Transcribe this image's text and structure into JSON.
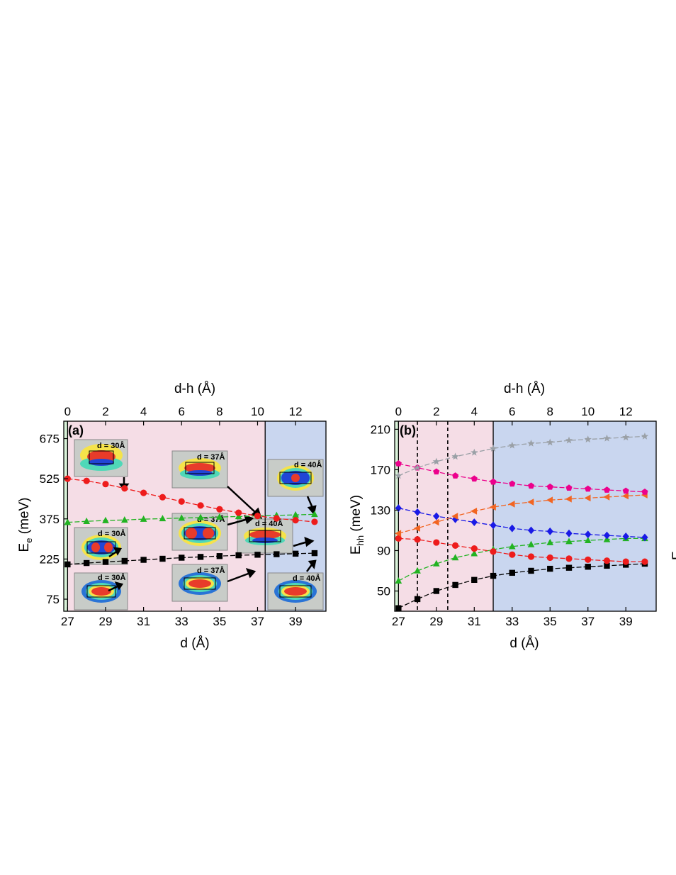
{
  "chart_data": [
    {
      "type": "line",
      "panel_label": "(a)",
      "xlabel": "d (Å)",
      "ylabel_main": "E",
      "ylabel_sub": "e",
      "ylabel_unit": " (meV)",
      "top_xlabel": "d-h (Å)",
      "x_ticks": [
        "27",
        "29",
        "31",
        "33",
        "35",
        "37",
        "39"
      ],
      "y_ticks": [
        "75",
        "225",
        "375",
        "525",
        "675"
      ],
      "top_ticks": [
        "0",
        "2",
        "4",
        "6",
        "8",
        "10",
        "12"
      ],
      "xlim": [
        26.8,
        40.6
      ],
      "ylim": [
        30,
        740
      ],
      "regions": [
        {
          "from": 26.8,
          "to": 27,
          "color": "#d9f2d9"
        },
        {
          "from": 27,
          "to": 37.4,
          "color": "#f5dde6"
        },
        {
          "from": 37.4,
          "to": 40.6,
          "color": "#c9d6ef"
        }
      ],
      "x": [
        27,
        28,
        29,
        30,
        31,
        32,
        33,
        34,
        35,
        36,
        37,
        38,
        39,
        40
      ],
      "series": [
        {
          "marker": "square",
          "color": "#000000",
          "values": [
            205,
            210,
            214,
            218,
            222,
            226,
            230,
            233,
            236,
            239,
            241,
            243,
            245,
            247
          ]
        },
        {
          "marker": "triangle",
          "color": "#22b322",
          "values": [
            362,
            366,
            369,
            371,
            374,
            376,
            378,
            380,
            382,
            384,
            386,
            388,
            390,
            392
          ]
        },
        {
          "marker": "circle",
          "color": "#ee1c1c",
          "values": [
            525,
            517,
            505,
            489,
            472,
            456,
            440,
            425,
            411,
            398,
            386,
            377,
            370,
            364
          ]
        }
      ],
      "insets": [
        {
          "label": "d = 30Å"
        },
        {
          "label": "d = 30Å"
        },
        {
          "label": "d = 30Å"
        },
        {
          "label": "d = 37Å"
        },
        {
          "label": "d = 37Å"
        },
        {
          "label": "d = 37Å"
        },
        {
          "label": "d = 40Å"
        },
        {
          "label": "d = 40Å"
        },
        {
          "label": "d = 40Å"
        }
      ]
    },
    {
      "type": "line",
      "panel_label": "(b)",
      "xlabel": "d (Å)",
      "ylabel_main": "E",
      "ylabel_sub": "hh",
      "ylabel_unit": " (meV)",
      "top_xlabel": "d-h (Å)",
      "cut_off_label": "E",
      "x_ticks": [
        "27",
        "29",
        "31",
        "33",
        "35",
        "37",
        "39"
      ],
      "y_ticks": [
        "50",
        "90",
        "130",
        "170",
        "210"
      ],
      "top_ticks": [
        "0",
        "2",
        "4",
        "6",
        "8",
        "10",
        "12"
      ],
      "xlim": [
        26.8,
        40.6
      ],
      "ylim": [
        30,
        218
      ],
      "regions": [
        {
          "from": 26.8,
          "to": 27,
          "color": "#d9f2d9"
        },
        {
          "from": 27,
          "to": 32,
          "color": "#f5dde6"
        },
        {
          "from": 32,
          "to": 40.6,
          "color": "#c9d6ef"
        }
      ],
      "dashed_lines_x": [
        28,
        29.6
      ],
      "x": [
        27,
        28,
        29,
        30,
        31,
        32,
        33,
        34,
        35,
        36,
        37,
        38,
        39,
        40
      ],
      "series": [
        {
          "marker": "square",
          "color": "#000000",
          "values": [
            33,
            42,
            50,
            56,
            61,
            65,
            68,
            70,
            72,
            73,
            74,
            75,
            76,
            77
          ]
        },
        {
          "marker": "triangle",
          "color": "#22b322",
          "values": [
            60,
            70,
            77,
            83,
            87,
            91,
            94,
            96,
            98,
            99,
            100,
            101,
            102,
            102
          ]
        },
        {
          "marker": "circle",
          "color": "#ee1c1c",
          "values": [
            102,
            101,
            98,
            95,
            92,
            89,
            86,
            84,
            83,
            82,
            81,
            80,
            79,
            79
          ]
        },
        {
          "marker": "diamond",
          "color": "#1a1ae6",
          "values": [
            132,
            128,
            124,
            121,
            118,
            115,
            112,
            110,
            109,
            107,
            106,
            105,
            104,
            103
          ]
        },
        {
          "marker": "triangle-left",
          "color": "#f26522",
          "values": [
            107,
            112,
            118,
            124,
            129,
            133,
            136,
            138,
            140,
            141,
            142,
            143,
            144,
            145
          ]
        },
        {
          "marker": "pentagon",
          "color": "#ec008c",
          "values": [
            176,
            172,
            168,
            164,
            161,
            158,
            156,
            154,
            153,
            152,
            151,
            150,
            149,
            148
          ]
        },
        {
          "marker": "star",
          "color": "#9aa0a6",
          "values": [
            164,
            172,
            178,
            183,
            187,
            191,
            194,
            196,
            197,
            199,
            200,
            201,
            202,
            203
          ]
        }
      ]
    }
  ]
}
